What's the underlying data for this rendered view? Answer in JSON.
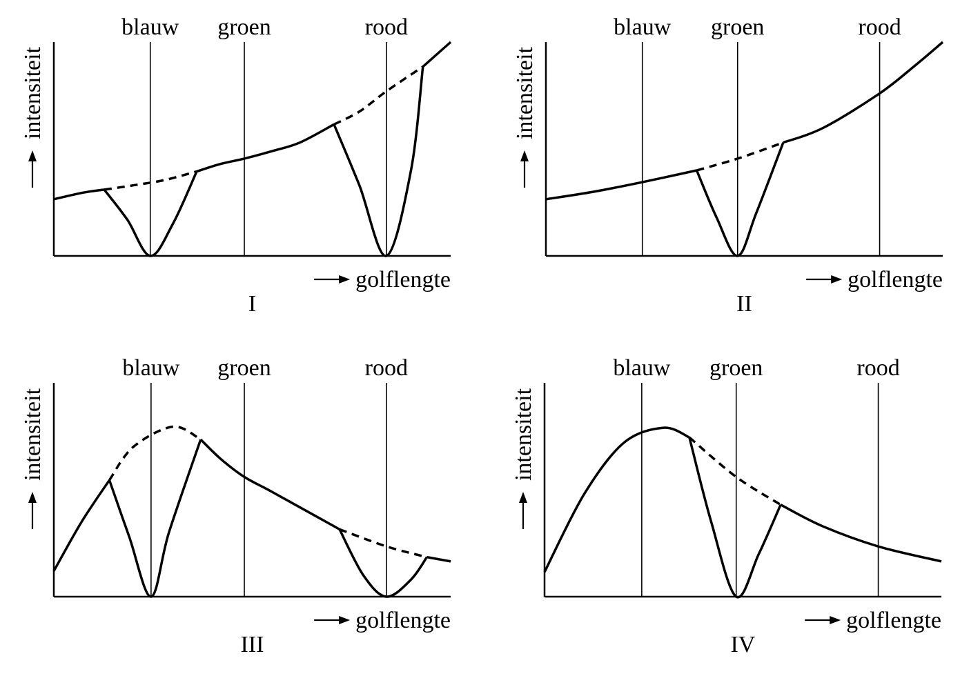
{
  "chart_data": [
    {
      "type": "line",
      "label": "I",
      "xlabel": "golflengte",
      "ylabel": "intensiteit",
      "color_lines": [
        {
          "name": "blauw",
          "x": 0.243
        },
        {
          "name": "groen",
          "x": 0.48
        },
        {
          "name": "rood",
          "x": 0.838
        }
      ],
      "series": [
        {
          "name": "",
          "style": "solid",
          "points": [
            [
              0,
              0.265
            ],
            [
              0.071,
              0.295
            ],
            [
              0.127,
              0.31
            ]
          ]
        },
        {
          "name": "",
          "style": "solid",
          "points": [
            [
              0.127,
              0.31
            ],
            [
              0.185,
              0.17
            ],
            [
              0.243,
              0
            ],
            [
              0.3,
              0.15
            ],
            [
              0.36,
              0.395
            ]
          ]
        },
        {
          "name": "",
          "style": "solid",
          "points": [
            [
              0.36,
              0.395
            ],
            [
              0.42,
              0.43
            ],
            [
              0.48,
              0.455
            ],
            [
              0.55,
              0.49
            ],
            [
              0.62,
              0.53
            ],
            [
              0.706,
              0.615
            ]
          ]
        },
        {
          "name": "",
          "style": "solid",
          "points": [
            [
              0.706,
              0.615
            ],
            [
              0.77,
              0.33
            ],
            [
              0.838,
              0
            ],
            [
              0.9,
              0.4
            ],
            [
              0.93,
              0.885
            ]
          ]
        },
        {
          "name": "",
          "style": "dashed",
          "points": [
            [
              0.127,
              0.31
            ],
            [
              0.2,
              0.33
            ],
            [
              0.28,
              0.355
            ],
            [
              0.36,
              0.395
            ]
          ]
        },
        {
          "name": "",
          "style": "dashed",
          "points": [
            [
              0.706,
              0.615
            ],
            [
              0.77,
              0.675
            ],
            [
              0.838,
              0.77
            ],
            [
              0.93,
              0.885
            ]
          ]
        },
        {
          "name": "",
          "style": "solid",
          "points": [
            [
              0.93,
              0.885
            ],
            [
              1.0,
              1.0
            ]
          ]
        }
      ]
    },
    {
      "type": "line",
      "label": "II",
      "xlabel": "golflengte",
      "ylabel": "intensiteit",
      "color_lines": [
        {
          "name": "blauw",
          "x": 0.243
        },
        {
          "name": "groen",
          "x": 0.483
        },
        {
          "name": "rood",
          "x": 0.841
        }
      ],
      "series": [
        {
          "name": "",
          "style": "solid",
          "points": [
            [
              0,
              0.265
            ],
            [
              0.12,
              0.3
            ],
            [
              0.243,
              0.345
            ],
            [
              0.38,
              0.4
            ]
          ]
        },
        {
          "name": "",
          "style": "solid",
          "points": [
            [
              0.38,
              0.4
            ],
            [
              0.43,
              0.18
            ],
            [
              0.483,
              0
            ],
            [
              0.53,
              0.2
            ],
            [
              0.598,
              0.53
            ]
          ]
        },
        {
          "name": "",
          "style": "dashed",
          "points": [
            [
              0.38,
              0.4
            ],
            [
              0.483,
              0.455
            ],
            [
              0.598,
              0.53
            ]
          ]
        },
        {
          "name": "",
          "style": "solid",
          "points": [
            [
              0.598,
              0.53
            ],
            [
              0.7,
              0.6
            ],
            [
              0.841,
              0.76
            ],
            [
              0.93,
              0.89
            ],
            [
              1.0,
              1.0
            ]
          ]
        }
      ]
    },
    {
      "type": "line",
      "label": "III",
      "xlabel": "golflengte",
      "ylabel": "intensiteit",
      "color_lines": [
        {
          "name": "blauw",
          "x": 0.245
        },
        {
          "name": "groen",
          "x": 0.48
        },
        {
          "name": "rood",
          "x": 0.838
        }
      ],
      "series": [
        {
          "name": "",
          "style": "solid",
          "points": [
            [
              0,
              0.12
            ],
            [
              0.07,
              0.35
            ],
            [
              0.14,
              0.545
            ]
          ]
        },
        {
          "name": "",
          "style": "solid",
          "points": [
            [
              0.14,
              0.545
            ],
            [
              0.19,
              0.28
            ],
            [
              0.245,
              0
            ],
            [
              0.29,
              0.3
            ],
            [
              0.37,
              0.735
            ]
          ]
        },
        {
          "name": "",
          "style": "dashed",
          "points": [
            [
              0.14,
              0.545
            ],
            [
              0.2,
              0.7
            ],
            [
              0.3,
              0.795
            ],
            [
              0.37,
              0.735
            ]
          ]
        },
        {
          "name": "",
          "style": "solid",
          "points": [
            [
              0.37,
              0.735
            ],
            [
              0.42,
              0.645
            ],
            [
              0.48,
              0.56
            ],
            [
              0.55,
              0.49
            ],
            [
              0.72,
              0.315
            ]
          ]
        },
        {
          "name": "",
          "style": "solid",
          "points": [
            [
              0.72,
              0.315
            ],
            [
              0.78,
              0.1
            ],
            [
              0.838,
              0
            ],
            [
              0.9,
              0.08
            ],
            [
              0.94,
              0.185
            ]
          ]
        },
        {
          "name": "",
          "style": "dashed",
          "points": [
            [
              0.72,
              0.315
            ],
            [
              0.838,
              0.235
            ],
            [
              0.94,
              0.185
            ]
          ]
        },
        {
          "name": "",
          "style": "solid",
          "points": [
            [
              0.94,
              0.185
            ],
            [
              1.0,
              0.165
            ]
          ]
        }
      ]
    },
    {
      "type": "line",
      "label": "IV",
      "xlabel": "golflengte",
      "ylabel": "intensiteit",
      "color_lines": [
        {
          "name": "blauw",
          "x": 0.245
        },
        {
          "name": "groen",
          "x": 0.483
        },
        {
          "name": "rood",
          "x": 0.841
        }
      ],
      "series": [
        {
          "name": "",
          "style": "solid",
          "points": [
            [
              0,
              0.115
            ],
            [
              0.1,
              0.48
            ],
            [
              0.2,
              0.72
            ],
            [
              0.3,
              0.79
            ],
            [
              0.365,
              0.745
            ]
          ]
        },
        {
          "name": "",
          "style": "solid",
          "points": [
            [
              0.365,
              0.745
            ],
            [
              0.42,
              0.35
            ],
            [
              0.483,
              0
            ],
            [
              0.54,
              0.2
            ],
            [
              0.595,
              0.43
            ]
          ]
        },
        {
          "name": "",
          "style": "dashed",
          "points": [
            [
              0.365,
              0.745
            ],
            [
              0.483,
              0.56
            ],
            [
              0.595,
              0.43
            ]
          ]
        },
        {
          "name": "",
          "style": "solid",
          "points": [
            [
              0.595,
              0.43
            ],
            [
              0.7,
              0.33
            ],
            [
              0.841,
              0.235
            ],
            [
              1.0,
              0.165
            ]
          ]
        }
      ]
    }
  ]
}
